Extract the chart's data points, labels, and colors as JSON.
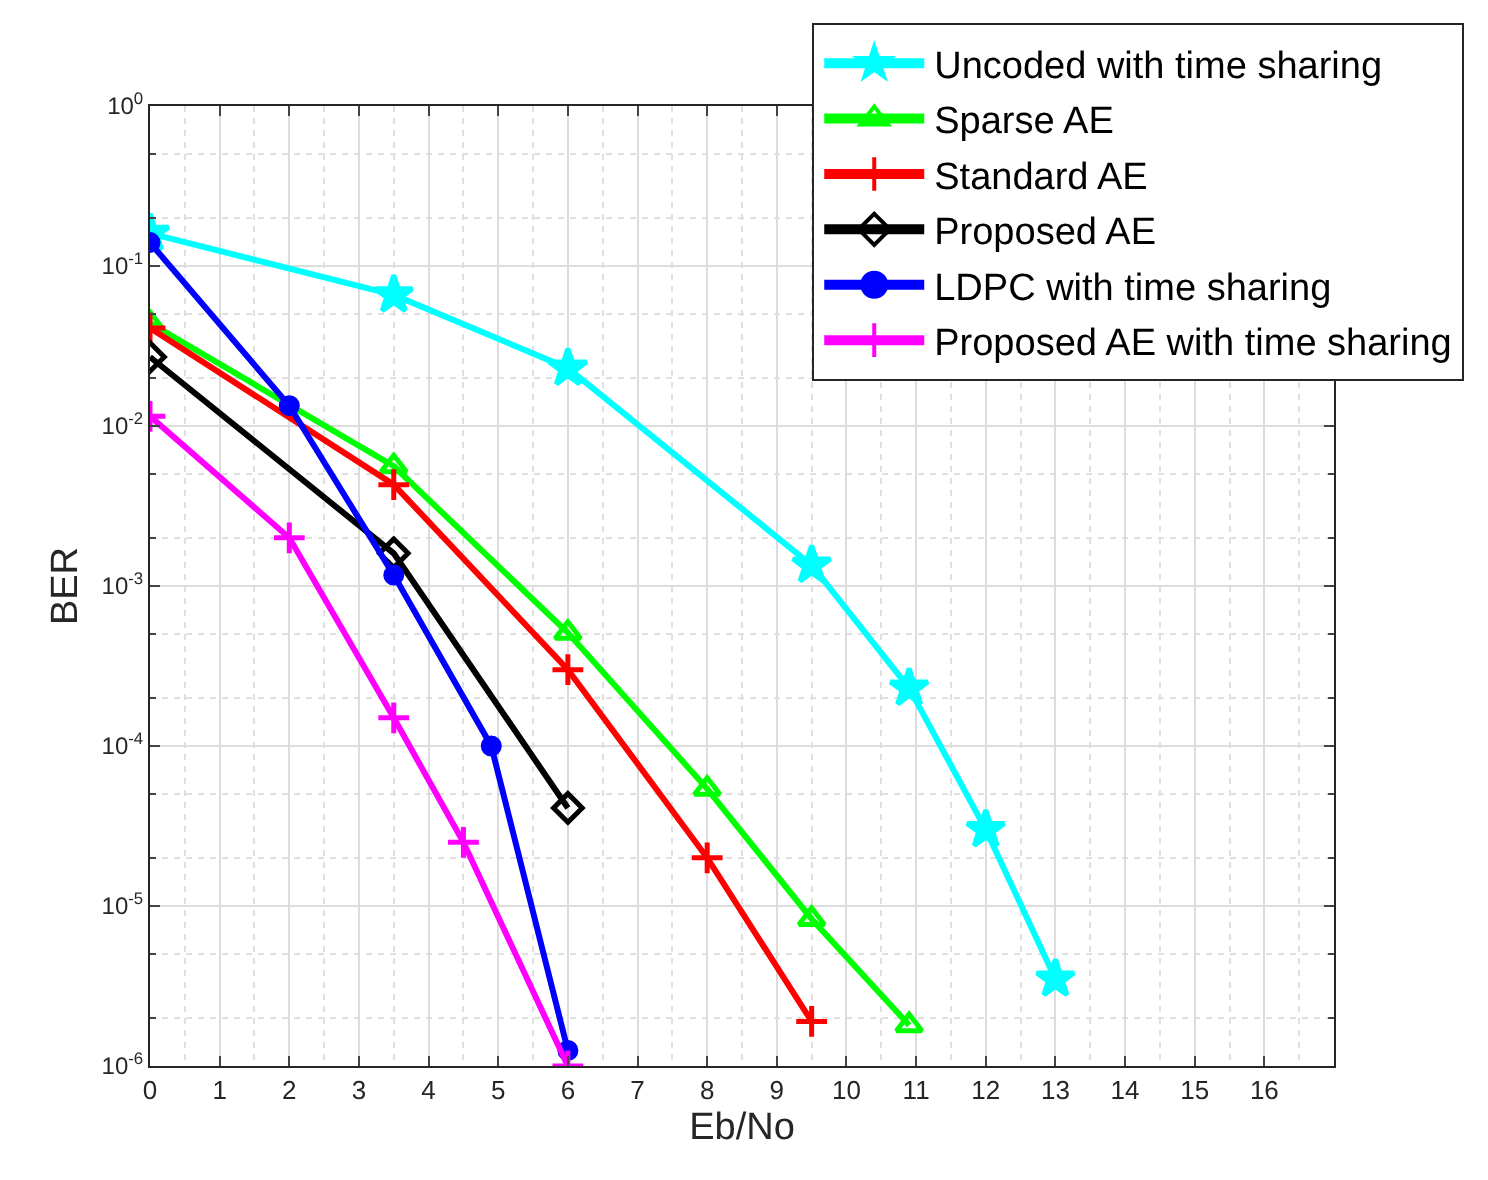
{
  "chart_data": {
    "type": "line",
    "xlabel": "Eb/No",
    "ylabel": "BER",
    "log": "y",
    "grid": true,
    "legend": "top right",
    "xlim": [
      0,
      17
    ],
    "xticks": [
      0,
      1,
      2,
      3,
      4,
      5,
      6,
      7,
      8,
      9,
      10,
      11,
      12,
      13,
      14,
      15,
      16
    ],
    "ylim": [
      1e-06,
      1
    ],
    "yticks": [
      {
        "value": 1e-06,
        "label": "10$^{-6}$"
      },
      {
        "value": 1e-05,
        "label": "10$^{-5}$"
      },
      {
        "value": 0.0001,
        "label": "10$^{-4}$"
      },
      {
        "value": 0.001,
        "label": "10$^{-3}$"
      },
      {
        "value": 0.01,
        "label": "10$^{-2}$"
      },
      {
        "value": 0.1,
        "label": "10$^{-1}$"
      },
      {
        "value": 1,
        "label": "10$^{0}$"
      }
    ],
    "series": [
      {
        "name": "Uncoded with time sharing",
        "color": "#00ffff",
        "marker": "star",
        "x": [
          0,
          3.5,
          6,
          9.5,
          10.9,
          12,
          13
        ],
        "values": [
          0.16,
          0.066,
          0.023,
          0.00135,
          0.00023,
          3e-05,
          3.5e-06
        ]
      },
      {
        "name": "Sparse AE",
        "color": "#00ff00",
        "marker": "triangle",
        "x": [
          0,
          3.5,
          6,
          8,
          9.5,
          10.9
        ],
        "values": [
          0.044,
          0.0056,
          0.00051,
          5.4e-05,
          8.3e-06,
          1.8e-06
        ]
      },
      {
        "name": "Standard AE",
        "color": "#ff0000",
        "marker": "cross",
        "x": [
          0,
          3.5,
          6,
          8,
          9.5
        ],
        "values": [
          0.041,
          0.0043,
          0.0003,
          2e-05,
          1.9e-06
        ]
      },
      {
        "name": "Proposed AE",
        "color": "#000000",
        "marker": "diamond",
        "x": [
          0,
          3.5,
          6
        ],
        "values": [
          0.027,
          0.0016,
          4.1e-05
        ]
      },
      {
        "name": "LDPC with time sharing",
        "color": "#0000ff",
        "marker": "circle",
        "x": [
          0,
          2,
          3.5,
          4.9,
          6
        ],
        "values": [
          0.14,
          0.0134,
          0.00117,
          0.0001,
          1.25e-06
        ]
      },
      {
        "name": "Proposed AE with time sharing",
        "color": "#ff00ff",
        "marker": "cross",
        "x": [
          0,
          2,
          3.5,
          4.5,
          6
        ],
        "values": [
          0.0115,
          0.002,
          0.00015,
          2.5e-05,
          1e-06
        ]
      }
    ]
  }
}
